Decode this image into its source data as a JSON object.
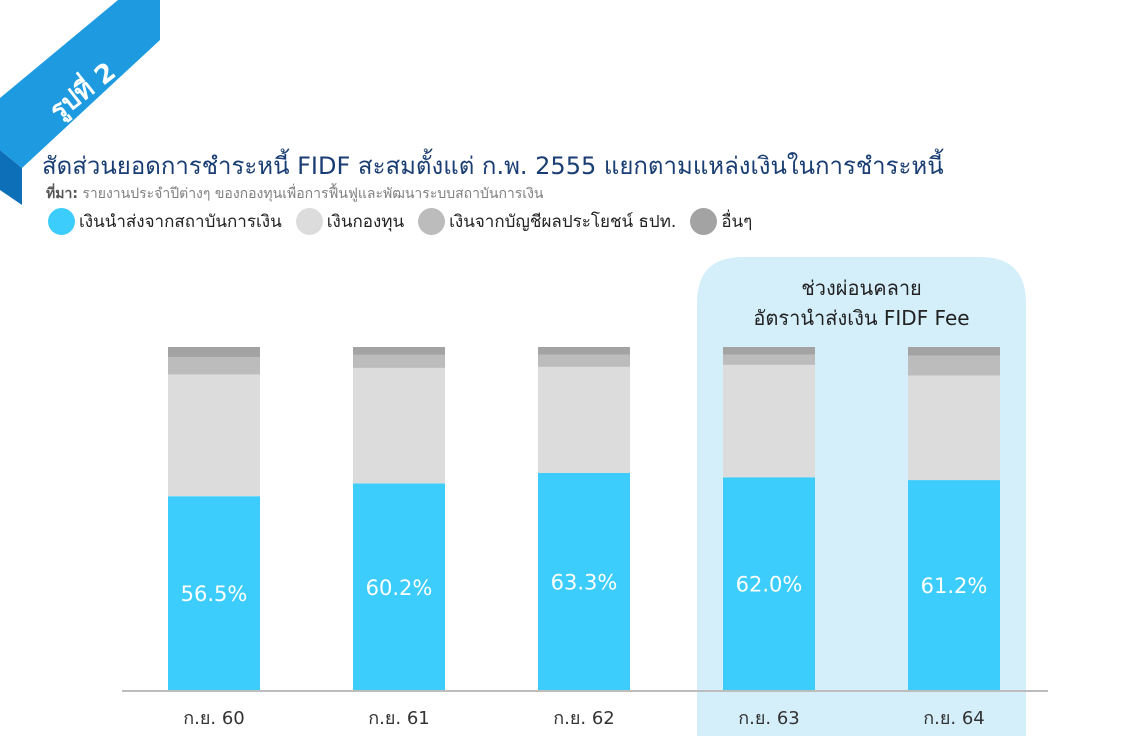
{
  "figure": {
    "badge": "รูปที่ 2",
    "title": "สัดส่วนยอดการชำระหนี้ FIDF สะสมตั้งแต่ ก.พ. 2555 แยกตามแหล่งเงินในการชำระหนี้",
    "source_prefix": "ที่มา:",
    "source_text": " รายงานประจำปีต่างๆ ของกองทุนเพื่อการฟื้นฟูและพัฒนาระบบสถาบันการเงิน"
  },
  "colors": {
    "ribbon": "#1e9be0",
    "ribbon_dark": "#0d6fb8",
    "title": "#1a3e73",
    "highlight_bg": "#d4effa",
    "axis": "#bdbdbd"
  },
  "chart_data": {
    "type": "bar",
    "stacked": true,
    "normalized_to": 100,
    "categories": [
      "ก.ย. 60",
      "ก.ย. 61",
      "ก.ย. 62",
      "ก.ย. 63",
      "ก.ย. 64"
    ],
    "series": [
      {
        "name": "เงินนำส่งจากสถาบันการเงิน",
        "color": "#3ccdfc",
        "values": [
          56.5,
          60.2,
          63.3,
          62.0,
          61.2
        ],
        "labels": [
          "56.5%",
          "60.2%",
          "63.3%",
          "62.0%",
          "61.2%"
        ]
      },
      {
        "name": "เงินกองทุน",
        "color": "#dcdcdc",
        "values": [
          35.5,
          33.7,
          30.9,
          32.8,
          30.5
        ]
      },
      {
        "name": "เงินจากบัญชีผลประโยชน์ ธปท.",
        "color": "#bcbcbc",
        "values": [
          5.0,
          3.8,
          3.6,
          3.0,
          5.8
        ]
      },
      {
        "name": "อื่นๆ",
        "color": "#a3a3a3",
        "values": [
          3.0,
          2.3,
          2.2,
          2.2,
          2.5
        ]
      }
    ],
    "ylim": [
      0,
      100
    ],
    "highlight": {
      "categories": [
        "ก.ย. 63",
        "ก.ย. 64"
      ],
      "label_lines": [
        "ช่วงผ่อนคลาย",
        "อัตรานำส่งเงิน FIDF Fee"
      ]
    }
  }
}
